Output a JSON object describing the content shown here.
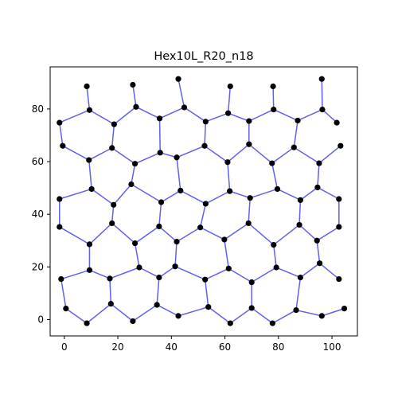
{
  "chart_data": {
    "type": "scatter",
    "title": "Hex10L_R20_n18",
    "xlabel": "",
    "ylabel": "",
    "xlim": [
      -5.3,
      109.5
    ],
    "ylim": [
      -6.2,
      96.0
    ],
    "x_ticks": [
      0,
      20,
      40,
      60,
      80,
      100
    ],
    "y_ticks": [
      0,
      20,
      40,
      60,
      80
    ],
    "grid": false,
    "colors": {
      "edge": "#6060ee",
      "node": "#000000"
    },
    "nodes": [
      {
        "id": 0,
        "x": 8.4,
        "y": 88.6
      },
      {
        "id": 1,
        "x": 25.6,
        "y": 89.2
      },
      {
        "id": 2,
        "x": 42.6,
        "y": 91.4
      },
      {
        "id": 3,
        "x": 62.0,
        "y": 88.6
      },
      {
        "id": 4,
        "x": 78.0,
        "y": 88.6
      },
      {
        "id": 5,
        "x": 96.2,
        "y": 91.4
      },
      {
        "id": 6,
        "x": 9.4,
        "y": 79.6
      },
      {
        "id": 7,
        "x": 26.8,
        "y": 80.8
      },
      {
        "id": 8,
        "x": 44.8,
        "y": 80.6
      },
      {
        "id": 9,
        "x": 61.2,
        "y": 78.4
      },
      {
        "id": 10,
        "x": 78.2,
        "y": 79.8
      },
      {
        "id": 11,
        "x": 96.4,
        "y": 79.8
      },
      {
        "id": 12,
        "x": -1.8,
        "y": 74.8
      },
      {
        "id": 13,
        "x": 18.6,
        "y": 74.2
      },
      {
        "id": 14,
        "x": 35.6,
        "y": 76.4
      },
      {
        "id": 15,
        "x": 52.8,
        "y": 75.2
      },
      {
        "id": 16,
        "x": 69.0,
        "y": 75.4
      },
      {
        "id": 17,
        "x": 87.2,
        "y": 75.6
      },
      {
        "id": 18,
        "x": 101.8,
        "y": 74.8
      },
      {
        "id": 19,
        "x": -0.6,
        "y": 66.0
      },
      {
        "id": 20,
        "x": 17.8,
        "y": 65.2
      },
      {
        "id": 21,
        "x": 35.8,
        "y": 63.4
      },
      {
        "id": 22,
        "x": 52.4,
        "y": 66.0
      },
      {
        "id": 23,
        "x": 69.0,
        "y": 66.6
      },
      {
        "id": 24,
        "x": 85.8,
        "y": 65.4
      },
      {
        "id": 25,
        "x": 103.2,
        "y": 66.0
      },
      {
        "id": 26,
        "x": 9.2,
        "y": 60.6
      },
      {
        "id": 27,
        "x": 26.4,
        "y": 59.2
      },
      {
        "id": 28,
        "x": 42.0,
        "y": 61.6
      },
      {
        "id": 29,
        "x": 61.0,
        "y": 59.8
      },
      {
        "id": 30,
        "x": 77.6,
        "y": 59.4
      },
      {
        "id": 31,
        "x": 95.2,
        "y": 59.4
      },
      {
        "id": 32,
        "x": 10.2,
        "y": 49.6
      },
      {
        "id": 33,
        "x": 25.0,
        "y": 51.4
      },
      {
        "id": 34,
        "x": 43.4,
        "y": 49.0
      },
      {
        "id": 35,
        "x": 61.8,
        "y": 48.8
      },
      {
        "id": 36,
        "x": 79.6,
        "y": 49.6
      },
      {
        "id": 37,
        "x": 94.6,
        "y": 50.2
      },
      {
        "id": 38,
        "x": -1.8,
        "y": 45.8
      },
      {
        "id": 39,
        "x": 18.4,
        "y": 43.6
      },
      {
        "id": 40,
        "x": 36.2,
        "y": 44.6
      },
      {
        "id": 41,
        "x": 52.8,
        "y": 44.0
      },
      {
        "id": 42,
        "x": 69.4,
        "y": 46.2
      },
      {
        "id": 43,
        "x": 88.2,
        "y": 45.4
      },
      {
        "id": 44,
        "x": 102.6,
        "y": 45.8
      },
      {
        "id": 45,
        "x": -1.8,
        "y": 35.2
      },
      {
        "id": 46,
        "x": 17.8,
        "y": 36.6
      },
      {
        "id": 47,
        "x": 35.4,
        "y": 35.4
      },
      {
        "id": 48,
        "x": 50.8,
        "y": 35.0
      },
      {
        "id": 49,
        "x": 68.8,
        "y": 36.6
      },
      {
        "id": 50,
        "x": 87.8,
        "y": 36.0
      },
      {
        "id": 51,
        "x": 102.6,
        "y": 35.2
      },
      {
        "id": 52,
        "x": 9.4,
        "y": 28.6
      },
      {
        "id": 53,
        "x": 26.4,
        "y": 29.0
      },
      {
        "id": 54,
        "x": 42.0,
        "y": 29.6
      },
      {
        "id": 55,
        "x": 59.8,
        "y": 30.4
      },
      {
        "id": 56,
        "x": 78.2,
        "y": 28.4
      },
      {
        "id": 57,
        "x": 94.4,
        "y": 30.0
      },
      {
        "id": 58,
        "x": 9.4,
        "y": 18.8
      },
      {
        "id": 59,
        "x": 28.0,
        "y": 19.8
      },
      {
        "id": 60,
        "x": 41.4,
        "y": 20.2
      },
      {
        "id": 61,
        "x": 61.4,
        "y": 19.4
      },
      {
        "id": 62,
        "x": 79.2,
        "y": 19.8
      },
      {
        "id": 63,
        "x": 95.4,
        "y": 21.4
      },
      {
        "id": 64,
        "x": -1.2,
        "y": 15.4
      },
      {
        "id": 65,
        "x": 17.0,
        "y": 15.6
      },
      {
        "id": 66,
        "x": 35.4,
        "y": 16.0
      },
      {
        "id": 67,
        "x": 52.6,
        "y": 15.2
      },
      {
        "id": 68,
        "x": 70.0,
        "y": 14.2
      },
      {
        "id": 69,
        "x": 88.2,
        "y": 16.0
      },
      {
        "id": 70,
        "x": 102.6,
        "y": 15.4
      },
      {
        "id": 71,
        "x": 0.6,
        "y": 4.2
      },
      {
        "id": 72,
        "x": 17.4,
        "y": 6.0
      },
      {
        "id": 73,
        "x": 34.6,
        "y": 5.6
      },
      {
        "id": 74,
        "x": 53.8,
        "y": 4.8
      },
      {
        "id": 75,
        "x": 70.0,
        "y": 4.4
      },
      {
        "id": 76,
        "x": 86.6,
        "y": 3.6
      },
      {
        "id": 77,
        "x": 104.6,
        "y": 4.2
      },
      {
        "id": 78,
        "x": 8.4,
        "y": -1.4
      },
      {
        "id": 79,
        "x": 25.6,
        "y": -0.6
      },
      {
        "id": 80,
        "x": 42.6,
        "y": 1.4
      },
      {
        "id": 81,
        "x": 62.0,
        "y": -1.4
      },
      {
        "id": 82,
        "x": 77.8,
        "y": -1.4
      },
      {
        "id": 83,
        "x": 96.2,
        "y": 1.4
      }
    ],
    "edges": [
      [
        0,
        6
      ],
      [
        1,
        7
      ],
      [
        2,
        8
      ],
      [
        3,
        9
      ],
      [
        4,
        10
      ],
      [
        5,
        11
      ],
      [
        6,
        12
      ],
      [
        6,
        13
      ],
      [
        7,
        13
      ],
      [
        7,
        14
      ],
      [
        8,
        14
      ],
      [
        8,
        15
      ],
      [
        9,
        15
      ],
      [
        9,
        16
      ],
      [
        10,
        16
      ],
      [
        10,
        17
      ],
      [
        11,
        17
      ],
      [
        11,
        18
      ],
      [
        12,
        19
      ],
      [
        13,
        20
      ],
      [
        14,
        21
      ],
      [
        15,
        22
      ],
      [
        16,
        23
      ],
      [
        17,
        24
      ],
      [
        19,
        26
      ],
      [
        20,
        26
      ],
      [
        20,
        27
      ],
      [
        21,
        27
      ],
      [
        21,
        28
      ],
      [
        22,
        28
      ],
      [
        22,
        29
      ],
      [
        23,
        29
      ],
      [
        23,
        30
      ],
      [
        24,
        30
      ],
      [
        24,
        31
      ],
      [
        25,
        31
      ],
      [
        26,
        32
      ],
      [
        27,
        33
      ],
      [
        28,
        34
      ],
      [
        29,
        35
      ],
      [
        30,
        36
      ],
      [
        31,
        37
      ],
      [
        32,
        38
      ],
      [
        32,
        39
      ],
      [
        33,
        39
      ],
      [
        33,
        40
      ],
      [
        34,
        40
      ],
      [
        34,
        41
      ],
      [
        35,
        41
      ],
      [
        35,
        42
      ],
      [
        36,
        42
      ],
      [
        36,
        43
      ],
      [
        37,
        43
      ],
      [
        37,
        44
      ],
      [
        38,
        45
      ],
      [
        39,
        46
      ],
      [
        40,
        47
      ],
      [
        41,
        48
      ],
      [
        42,
        49
      ],
      [
        43,
        50
      ],
      [
        44,
        51
      ],
      [
        45,
        52
      ],
      [
        46,
        52
      ],
      [
        46,
        53
      ],
      [
        47,
        53
      ],
      [
        47,
        54
      ],
      [
        48,
        54
      ],
      [
        48,
        55
      ],
      [
        49,
        55
      ],
      [
        49,
        56
      ],
      [
        50,
        56
      ],
      [
        50,
        57
      ],
      [
        51,
        57
      ],
      [
        52,
        58
      ],
      [
        53,
        59
      ],
      [
        54,
        60
      ],
      [
        55,
        61
      ],
      [
        56,
        62
      ],
      [
        57,
        63
      ],
      [
        58,
        64
      ],
      [
        58,
        65
      ],
      [
        59,
        65
      ],
      [
        59,
        66
      ],
      [
        60,
        66
      ],
      [
        60,
        67
      ],
      [
        61,
        67
      ],
      [
        61,
        68
      ],
      [
        62,
        68
      ],
      [
        62,
        69
      ],
      [
        63,
        69
      ],
      [
        63,
        70
      ],
      [
        64,
        71
      ],
      [
        65,
        72
      ],
      [
        66,
        73
      ],
      [
        67,
        74
      ],
      [
        68,
        75
      ],
      [
        69,
        76
      ],
      [
        71,
        78
      ],
      [
        72,
        78
      ],
      [
        72,
        79
      ],
      [
        73,
        79
      ],
      [
        73,
        80
      ],
      [
        74,
        80
      ],
      [
        74,
        81
      ],
      [
        75,
        81
      ],
      [
        75,
        82
      ],
      [
        76,
        82
      ],
      [
        76,
        83
      ],
      [
        77,
        83
      ]
    ]
  }
}
